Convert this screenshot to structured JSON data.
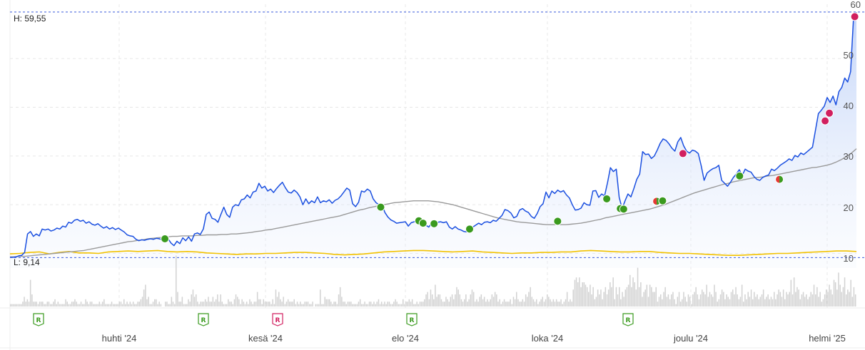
{
  "chart_data": {
    "type": "line",
    "y_axis": {
      "ticks": [
        "60",
        "50",
        "40",
        "30",
        "20",
        "10"
      ],
      "range": [
        7,
        61
      ]
    },
    "x_axis": {
      "labels": [
        "huhti '24",
        "kesä '24",
        "elo '24",
        "loka '24",
        "joulu '24",
        "helmi '25"
      ]
    },
    "high_label": "H: 59,55",
    "low_label": "L: 9,14",
    "high_value": 59.55,
    "low_value": 9.14,
    "colors": {
      "price_line": "#1a4fe0",
      "moving_average": "#9a9a9a",
      "yellow_line": "#f2c200",
      "reference_line": "#3b5bdb",
      "buy_marker": "#3a9a1e",
      "sell_marker": "#d11f5f",
      "mixed_marker_red": "#e53935",
      "volume": "#d2d2d2",
      "badge_green": "#3a9a1e",
      "badge_pink": "#d11f5f"
    },
    "series": [
      {
        "values": [
          9.2,
          9.2,
          9.3,
          9.5,
          9.6,
          10.2,
          14.0,
          14.5,
          13.5,
          14.0,
          13.6,
          15.0,
          14.8,
          15.0,
          14.6,
          14.8,
          15.2,
          15.0,
          15.6,
          15.4,
          16.4,
          16.2,
          16.8,
          17.0,
          16.6,
          16.8,
          16.2,
          16.5,
          16.0,
          15.8,
          16.1,
          15.6,
          15.2,
          15.5,
          15.0,
          15.3,
          14.9,
          15.2,
          14.8,
          14.4,
          13.8,
          13.6,
          13.5,
          12.9,
          12.6,
          12.8,
          12.7,
          12.9,
          13.0,
          12.9,
          13.1,
          13.0,
          12.8,
          12.9,
          13.0,
          12.1,
          11.6,
          12.5,
          12.0,
          13.2,
          12.6,
          13.4,
          12.5,
          14.0,
          14.2,
          13.9,
          15.0,
          18.0,
          18.5,
          17.2,
          17.0,
          16.4,
          18.0,
          19.5,
          18.0,
          17.4,
          19.5,
          20.0,
          19.8,
          21.0,
          21.2,
          22.0,
          21.4,
          22.6,
          22.8,
          24.4,
          23.4,
          23.8,
          22.8,
          23.2,
          22.5,
          23.3,
          24.0,
          24.6,
          23.5,
          22.6,
          22.4,
          23.0,
          22.5,
          21.6,
          20.0,
          21.2,
          20.2,
          20.8,
          20.4,
          21.6,
          20.4,
          20.8,
          20.6,
          21.0,
          20.3,
          20.9,
          21.2,
          21.8,
          22.6,
          23.4,
          23.0,
          20.2,
          19.6,
          20.5,
          22.8,
          22.6,
          23.2,
          22.8,
          21.2,
          20.4,
          20.0,
          20.1,
          18.4,
          17.5,
          16.9,
          16.6,
          16.2,
          16.3,
          16.4,
          16.5,
          15.6,
          16.3,
          16.5,
          16.6,
          16.2,
          16.3,
          15.8,
          15.4,
          16.3,
          16.2,
          16.4,
          16.5,
          16.3,
          16.5,
          15.4,
          15.0,
          15.5,
          15.0,
          14.8,
          14.5,
          14.4,
          15.0,
          15.4,
          15.8,
          16.2,
          15.9,
          16.4,
          16.5,
          16.3,
          16.8,
          16.6,
          17.2,
          17.8,
          19.0,
          18.8,
          18.3,
          17.3,
          17.6,
          18.9,
          19.2,
          18.7,
          18.4,
          17.6,
          17.2,
          18.2,
          19.6,
          20.2,
          22.6,
          21.4,
          22.8,
          22.3,
          23.0,
          22.6,
          22.9,
          22.0,
          21.4,
          20.0,
          18.9,
          19.0,
          19.3,
          20.4,
          20.0,
          19.9,
          22.8,
          22.9,
          21.5,
          22.2,
          21.8,
          24.5,
          27.6,
          26.8,
          27.3,
          21.5,
          19.2,
          20.8,
          22.2,
          21.6,
          23.3,
          25.2,
          26.3,
          30.9,
          30.3,
          30.4,
          29.5,
          30.0,
          31.2,
          32.6,
          33.5,
          33.2,
          32.5,
          31.6,
          31.0,
          32.9,
          33.8,
          32.1,
          31.0,
          30.6,
          31.2,
          31.0,
          30.5,
          28.0,
          25.0,
          26.5,
          27.0,
          27.4,
          27.6,
          28.1,
          25.0,
          24.4,
          23.8,
          24.6,
          25.6,
          26.3,
          27.2,
          26.0,
          27.3,
          26.9,
          26.7,
          25.8,
          25.2,
          25.0,
          25.6,
          25.9,
          26.1,
          27.3,
          27.0,
          27.5,
          28.1,
          28.5,
          28.9,
          29.4,
          29.1,
          30.1,
          29.8,
          30.6,
          30.3,
          30.8,
          31.3,
          31.8,
          35.2,
          38.7,
          39.4,
          40.2,
          42.0,
          41.0,
          42.3,
          40.5,
          43.2,
          44.1,
          46.0,
          45.2,
          47.3,
          58.3,
          59.5
        ]
      },
      {
        "values": [
          9.3,
          9.3,
          9.4,
          9.4,
          9.5,
          9.6,
          9.7,
          9.8,
          9.9,
          10.0,
          10.1,
          10.2,
          10.3,
          10.4,
          10.5,
          10.6,
          10.8,
          11.0,
          11.2,
          11.4,
          11.6,
          11.8,
          12.0,
          12.2,
          12.4,
          12.5,
          12.7,
          12.8,
          13.0,
          13.1,
          13.2,
          13.3,
          13.4,
          13.5,
          13.5,
          13.6,
          13.6,
          13.6,
          13.7,
          13.7,
          13.8,
          13.8,
          13.8,
          13.9,
          13.9,
          14.0,
          14.0,
          14.1,
          14.2,
          14.3,
          14.5,
          14.6,
          14.8,
          14.9,
          15.1,
          15.3,
          15.5,
          15.7,
          15.9,
          16.1,
          16.3,
          16.5,
          16.7,
          16.9,
          17.1,
          17.3,
          17.5,
          17.7,
          18.0,
          18.3,
          18.6,
          18.9,
          19.1,
          19.4,
          19.6,
          19.8,
          20.0,
          20.2,
          20.4,
          20.5,
          20.6,
          20.7,
          20.8,
          20.8,
          20.8,
          20.8,
          20.7,
          20.6,
          20.4,
          20.2,
          20.0,
          19.7,
          19.4,
          19.1,
          18.8,
          18.5,
          18.2,
          17.9,
          17.6,
          17.3,
          17.1,
          16.9,
          16.7,
          16.5,
          16.4,
          16.3,
          16.2,
          16.1,
          16.0,
          15.9,
          15.9,
          15.9,
          15.9,
          15.9,
          16.0,
          16.1,
          16.2,
          16.4,
          16.6,
          16.8,
          17.0,
          17.3,
          17.5,
          17.7,
          17.9,
          18.1,
          18.3,
          18.5,
          18.7,
          18.9,
          19.1,
          19.4,
          19.7,
          20.0,
          20.4,
          20.8,
          21.2,
          21.6,
          22.0,
          22.4,
          22.7,
          23.0,
          23.3,
          23.6,
          23.9,
          24.2,
          24.4,
          24.7,
          24.9,
          25.1,
          25.3,
          25.5,
          25.6,
          25.7,
          25.9,
          26.0,
          26.2,
          26.4,
          26.6,
          26.8,
          27.0,
          27.2,
          27.4,
          27.6,
          27.7,
          27.9,
          28.1,
          28.4,
          28.8,
          29.3,
          29.9,
          30.6,
          31.5
        ]
      },
      {
        "values": [
          9.9,
          10.0,
          10.2,
          10.3,
          9.9,
          10.2,
          10.4,
          10.1,
          10.1,
          10.0,
          10.3,
          10.4,
          10.5,
          10.4,
          10.5,
          10.6,
          10.4,
          10.3,
          10.4,
          10.3,
          10.1,
          10.0,
          9.9,
          9.8,
          9.9,
          9.9,
          10.0,
          10.0,
          10.1,
          10.2,
          10.2,
          10.1,
          10.0,
          9.8,
          9.7,
          9.8,
          9.9,
          10.1,
          10.3,
          10.4,
          10.5,
          10.6,
          10.6,
          10.5,
          10.4,
          10.3,
          10.4,
          10.5,
          10.3,
          10.2,
          10.1,
          10.0,
          10.1,
          10.1,
          10.2,
          10.2,
          10.3,
          10.3,
          10.5,
          10.6,
          10.5,
          10.4,
          10.3,
          10.3,
          10.4,
          10.4,
          10.2,
          10.1,
          10.0,
          10.0,
          9.9,
          9.8,
          9.7,
          9.6,
          9.6,
          9.7,
          9.8,
          9.9,
          10.0,
          10.0,
          10.1,
          10.2,
          10.3,
          10.4,
          10.5,
          10.5,
          10.4
        ]
      }
    ],
    "markers": [
      {
        "x": 0.183,
        "y": 13.0,
        "kind": "buy"
      },
      {
        "x": 0.438,
        "y": 19.5,
        "kind": "buy"
      },
      {
        "x": 0.483,
        "y": 16.7,
        "kind": "buy"
      },
      {
        "x": 0.488,
        "y": 16.2,
        "kind": "buy"
      },
      {
        "x": 0.501,
        "y": 16.1,
        "kind": "buy"
      },
      {
        "x": 0.543,
        "y": 15.0,
        "kind": "buy"
      },
      {
        "x": 0.647,
        "y": 16.6,
        "kind": "buy"
      },
      {
        "x": 0.705,
        "y": 21.2,
        "kind": "buy"
      },
      {
        "x": 0.721,
        "y": 19.2,
        "kind": "buy"
      },
      {
        "x": 0.725,
        "y": 19.1,
        "kind": "buy"
      },
      {
        "x": 0.764,
        "y": 20.7,
        "kind": "mixed"
      },
      {
        "x": 0.771,
        "y": 20.8,
        "kind": "buy"
      },
      {
        "x": 0.795,
        "y": 30.5,
        "kind": "sell"
      },
      {
        "x": 0.862,
        "y": 25.9,
        "kind": "buy"
      },
      {
        "x": 0.909,
        "y": 25.2,
        "kind": "mixed"
      },
      {
        "x": 0.963,
        "y": 37.2,
        "kind": "sell"
      },
      {
        "x": 0.968,
        "y": 38.8,
        "kind": "sell"
      },
      {
        "x": 0.998,
        "y": 58.6,
        "kind": "sell"
      }
    ],
    "volume": [
      1,
      1,
      1,
      1,
      1,
      1,
      1,
      1,
      2,
      4,
      2,
      3,
      2,
      11,
      5,
      2,
      2,
      2,
      1,
      2,
      2,
      2,
      1,
      1,
      2,
      2,
      1,
      1,
      2,
      3,
      1,
      2,
      1,
      1,
      1,
      1,
      3,
      2,
      1,
      1,
      2,
      2,
      3,
      2,
      1,
      1,
      2,
      1,
      1,
      3,
      2,
      1,
      2,
      2,
      1,
      1,
      1,
      1,
      2,
      1,
      2,
      3,
      1,
      1,
      1,
      1,
      2,
      1,
      1,
      1,
      1,
      2,
      2,
      1,
      3,
      1,
      2,
      1,
      2,
      1,
      2,
      1,
      1,
      2,
      2,
      3,
      4,
      7,
      9,
      3,
      4,
      1,
      1,
      2,
      3,
      3,
      1,
      2,
      1,
      0,
      0,
      2,
      2,
      1,
      1,
      4,
      2,
      1,
      21,
      6,
      2,
      2,
      4,
      1,
      1,
      1,
      3,
      2,
      5,
      7,
      4,
      5,
      2,
      1,
      2,
      2,
      2,
      3,
      2,
      4,
      2,
      2,
      4,
      2,
      3,
      5,
      2,
      5,
      2,
      1,
      1,
      1,
      3,
      2,
      2,
      1,
      3,
      5,
      4,
      3,
      1,
      3,
      2,
      1,
      2,
      1,
      3,
      2,
      1,
      2,
      2,
      6,
      3,
      3,
      1,
      3,
      2,
      2,
      2,
      2,
      1,
      3,
      1,
      7,
      4,
      6,
      3,
      2,
      4,
      1,
      2,
      3,
      2,
      2,
      2,
      3,
      1,
      2,
      1,
      2,
      1,
      1,
      2,
      2,
      2,
      1,
      1,
      2,
      0,
      1,
      1,
      1,
      7,
      1,
      1,
      4,
      3,
      3,
      3,
      2,
      1,
      2,
      2,
      1,
      5,
      8,
      4,
      2,
      2,
      1,
      2,
      2,
      2,
      1,
      1,
      1,
      1,
      2,
      3,
      1,
      1,
      2,
      1,
      1,
      2,
      2,
      1,
      2,
      1,
      2,
      3,
      1,
      2,
      1,
      2,
      1,
      2,
      2,
      1,
      1,
      2,
      3,
      2,
      1,
      1,
      1,
      3,
      1,
      2,
      2,
      3,
      2,
      3,
      1,
      1,
      2,
      1,
      2,
      2,
      2,
      3,
      5,
      6,
      3,
      7,
      5,
      3,
      9,
      4,
      5,
      5,
      3,
      2,
      2,
      4,
      3,
      2,
      4,
      5,
      3,
      5,
      8,
      7,
      5,
      3,
      2,
      3,
      5,
      2,
      3,
      5,
      7,
      6,
      2,
      3,
      2,
      4,
      5,
      3,
      4,
      2,
      3,
      2,
      3,
      5,
      4,
      6,
      5,
      2,
      3,
      1,
      2,
      3,
      2,
      2,
      2,
      3,
      1,
      4,
      3,
      6,
      3,
      2,
      2,
      3,
      2,
      5,
      4,
      6,
      8,
      4,
      3,
      2,
      3,
      1,
      2,
      3,
      4,
      2,
      3,
      5,
      4,
      3,
      2,
      3,
      2,
      3,
      2,
      2,
      3,
      1,
      2,
      3,
      6,
      2,
      3,
      2,
      7,
      11,
      12,
      10,
      12,
      8,
      10,
      10,
      9,
      8,
      6,
      9,
      5,
      8,
      3,
      4,
      7,
      5,
      7,
      3,
      6,
      8,
      5,
      7,
      10,
      8,
      12,
      3,
      8,
      5,
      8,
      3,
      6,
      4,
      7,
      8,
      9,
      13,
      8,
      12,
      10,
      7,
      16,
      8,
      10,
      4,
      6,
      7,
      9,
      4,
      9,
      8,
      6,
      6,
      8,
      2,
      4,
      5,
      3,
      6,
      8,
      4,
      5,
      3,
      5,
      6,
      3,
      1,
      4,
      6,
      2,
      3,
      6,
      4,
      2,
      5,
      4,
      1,
      5,
      6,
      8,
      5,
      3,
      5,
      7,
      6,
      5,
      9,
      4,
      6,
      5,
      4,
      9,
      6,
      2,
      3,
      5,
      7,
      6,
      3,
      5,
      4,
      3,
      6,
      7,
      5,
      8,
      5,
      3,
      4,
      9,
      2,
      5,
      3,
      6,
      4,
      7,
      3,
      6,
      4,
      5,
      3,
      4,
      5,
      7,
      3,
      4,
      5,
      3,
      4,
      3,
      6,
      3,
      5,
      7,
      6,
      4,
      7,
      3,
      6,
      5,
      6,
      11,
      5,
      12,
      6,
      8,
      7,
      3,
      5,
      6,
      4,
      5,
      3,
      4,
      6,
      5,
      9,
      5,
      8,
      4,
      6,
      2,
      3,
      5,
      7,
      6,
      9,
      7,
      5,
      11,
      10,
      7,
      14,
      9,
      6,
      8,
      12,
      5,
      7,
      6,
      11,
      4,
      8,
      5
    ]
  },
  "badges": [
    {
      "letter": "R",
      "color": "green"
    },
    {
      "letter": "R",
      "color": "green"
    },
    {
      "letter": "R",
      "color": "pink"
    },
    {
      "letter": "R",
      "color": "green"
    },
    {
      "letter": "R",
      "color": "green"
    }
  ]
}
